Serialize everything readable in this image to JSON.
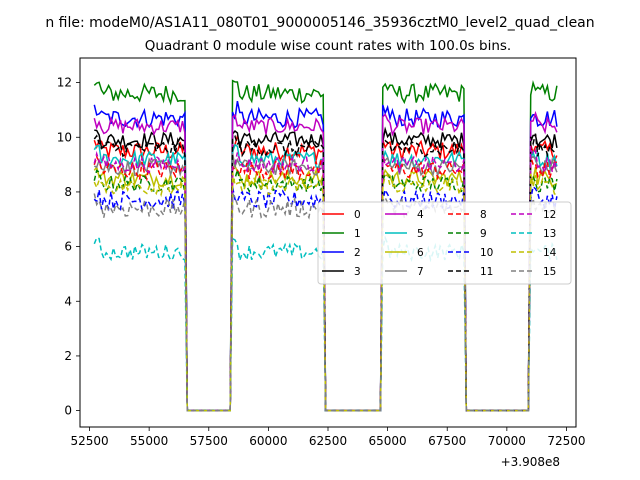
{
  "chart_data": {
    "type": "line",
    "suptitle": "n file: modeM0/AS1A11_080T01_9000005146_35936cztM0_level2_quad_clean",
    "title": "Quadrant 0 module wise count rates with 100.0s bins.",
    "xlabel": "",
    "ylabel": "",
    "x_offset_label": "+3.908e8",
    "xlim": [
      52100,
      72900
    ],
    "ylim": [
      -0.6,
      12.9
    ],
    "xticks": [
      52500,
      55000,
      57500,
      60000,
      62500,
      65000,
      67500,
      70000,
      72500
    ],
    "yticks": [
      0,
      2,
      4,
      6,
      8,
      10,
      12
    ],
    "legend_position": "center-right",
    "legend_columns": 4,
    "x_start": 52700,
    "x_end": 72100,
    "bin_size": 100,
    "on_intervals": [
      [
        52700,
        56500
      ],
      [
        58500,
        62300
      ],
      [
        64800,
        68200
      ],
      [
        71000,
        72100
      ]
    ],
    "off_value": 0,
    "series": [
      {
        "name": "0",
        "color": "#ff0000",
        "dash": "solid",
        "mean": 9.5,
        "noise": 0.35
      },
      {
        "name": "1",
        "color": "#008000",
        "dash": "solid",
        "mean": 11.6,
        "noise": 0.35
      },
      {
        "name": "2",
        "color": "#0000ff",
        "dash": "solid",
        "mean": 10.7,
        "noise": 0.35
      },
      {
        "name": "3",
        "color": "#000000",
        "dash": "solid",
        "mean": 9.9,
        "noise": 0.3
      },
      {
        "name": "4",
        "color": "#bf00bf",
        "dash": "solid",
        "mean": 10.4,
        "noise": 0.3
      },
      {
        "name": "5",
        "color": "#00bfbf",
        "dash": "solid",
        "mean": 9.2,
        "noise": 0.3
      },
      {
        "name": "6",
        "color": "#bfbf00",
        "dash": "solid",
        "mean": 8.5,
        "noise": 0.3
      },
      {
        "name": "7",
        "color": "#808080",
        "dash": "solid",
        "mean": 8.9,
        "noise": 0.3
      },
      {
        "name": "8",
        "color": "#ff0000",
        "dash": "dashed",
        "mean": 8.8,
        "noise": 0.35
      },
      {
        "name": "9",
        "color": "#008000",
        "dash": "dashed",
        "mean": 8.3,
        "noise": 0.3
      },
      {
        "name": "10",
        "color": "#0000ff",
        "dash": "dashed",
        "mean": 7.7,
        "noise": 0.35
      },
      {
        "name": "11",
        "color": "#000000",
        "dash": "dashed",
        "mean": 9.6,
        "noise": 0.3
      },
      {
        "name": "12",
        "color": "#bf00bf",
        "dash": "dashed",
        "mean": 9.0,
        "noise": 0.3
      },
      {
        "name": "13",
        "color": "#00bfbf",
        "dash": "dashed",
        "mean": 5.8,
        "noise": 0.3
      },
      {
        "name": "14",
        "color": "#bfbf00",
        "dash": "dashed",
        "mean": 8.2,
        "noise": 0.3
      },
      {
        "name": "15",
        "color": "#808080",
        "dash": "dashed",
        "mean": 7.4,
        "noise": 0.35
      }
    ]
  }
}
